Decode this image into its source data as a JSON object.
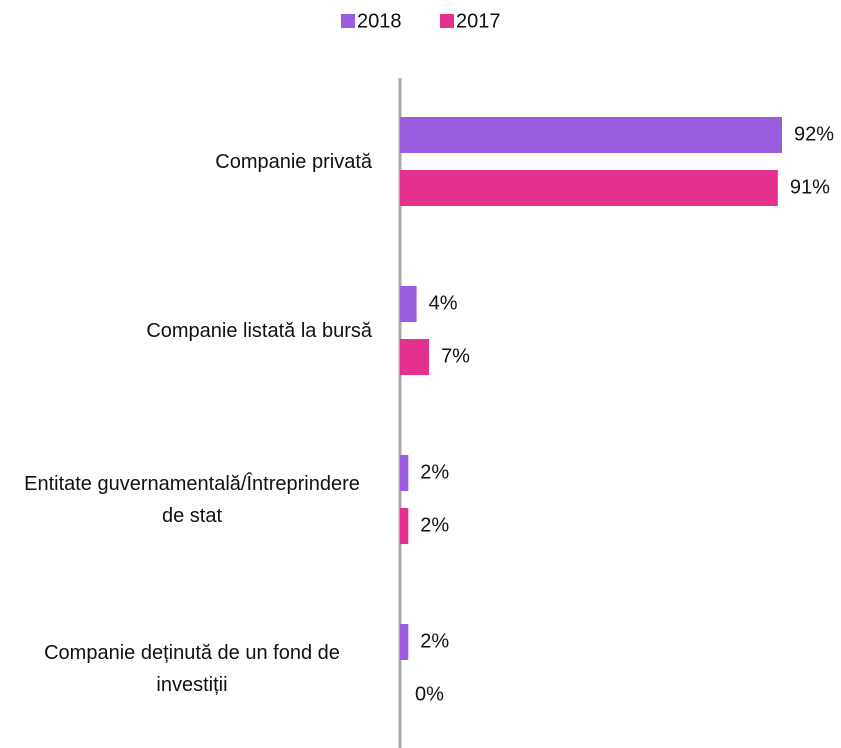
{
  "chart_data": {
    "type": "bar",
    "orientation": "horizontal",
    "categories": [
      "Companie privată",
      "Companie listată la bursă",
      "Entitate guvernamentală/Întreprindere de stat",
      "Companie deținută de un fond de investiții"
    ],
    "series": [
      {
        "name": "2018",
        "color": "#9c5ce0",
        "values": [
          92,
          4,
          2,
          2
        ],
        "value_labels": [
          "92%",
          "4%",
          "2%",
          "2%"
        ]
      },
      {
        "name": "2017",
        "color": "#e5318e",
        "values": [
          91,
          7,
          2,
          0
        ],
        "value_labels": [
          "91%",
          "7%",
          "2%",
          "0%"
        ]
      }
    ],
    "xlim": [
      0,
      100
    ],
    "legend": "top"
  }
}
